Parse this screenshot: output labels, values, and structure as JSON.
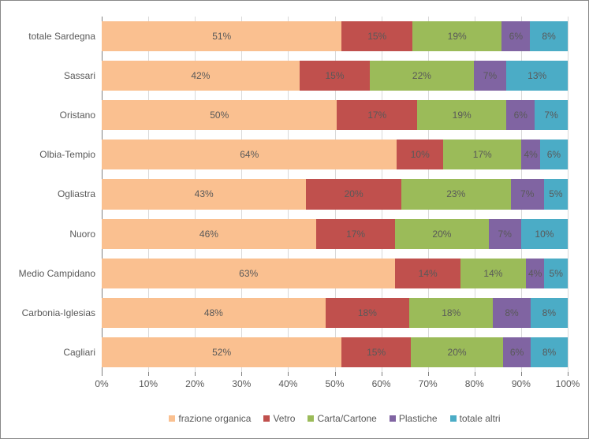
{
  "chart": {
    "type": "bar-stacked-horizontal-100pct",
    "background_color": "#ffffff",
    "border_color": "#888888",
    "font_family": "Arial",
    "label_fontsize": 12,
    "label_color": "#595959",
    "xlim": [
      0,
      100
    ],
    "xtick_step": 10,
    "xtick_labels": [
      "0%",
      "10%",
      "20%",
      "30%",
      "40%",
      "50%",
      "60%",
      "70%",
      "80%",
      "90%",
      "100%"
    ],
    "gridline_color": "#d9d9d9",
    "axis_line_color": "#808080",
    "series": [
      {
        "key": "frazione_organica",
        "label": "frazione organica",
        "color": "#fac090"
      },
      {
        "key": "vetro",
        "label": "Vetro",
        "color": "#c0504d"
      },
      {
        "key": "carta_cartone",
        "label": "Carta/Cartone",
        "color": "#9bbb59"
      },
      {
        "key": "plastiche",
        "label": "Plastiche",
        "color": "#8064a2"
      },
      {
        "key": "totale_altri",
        "label": "totale altri",
        "color": "#4bacc6"
      }
    ],
    "categories": [
      {
        "label": "totale Sardegna",
        "values": {
          "frazione_organica": 51,
          "vetro": 15,
          "carta_cartone": 19,
          "plastiche": 6,
          "totale_altri": 8
        },
        "display": {
          "frazione_organica": "51%",
          "vetro": "15%",
          "carta_cartone": "19%",
          "plastiche": "6%",
          "totale_altri": "8%"
        }
      },
      {
        "label": "Sassari",
        "values": {
          "frazione_organica": 42,
          "vetro": 15,
          "carta_cartone": 22,
          "plastiche": 7,
          "totale_altri": 13
        },
        "display": {
          "frazione_organica": "42%",
          "vetro": "15%",
          "carta_cartone": "22%",
          "plastiche": "7%",
          "totale_altri": "13%"
        }
      },
      {
        "label": "Oristano",
        "values": {
          "frazione_organica": 50,
          "vetro": 17,
          "carta_cartone": 19,
          "plastiche": 6,
          "totale_altri": 7
        },
        "display": {
          "frazione_organica": "50%",
          "vetro": "17%",
          "carta_cartone": "19%",
          "plastiche": "6%",
          "totale_altri": "7%"
        }
      },
      {
        "label": "Olbia-Tempio",
        "values": {
          "frazione_organica": 64,
          "vetro": 10,
          "carta_cartone": 17,
          "plastiche": 4,
          "totale_altri": 6
        },
        "display": {
          "frazione_organica": "64%",
          "vetro": "10%",
          "carta_cartone": "17%",
          "plastiche": "4%",
          "totale_altri": "6%"
        }
      },
      {
        "label": "Ogliastra",
        "values": {
          "frazione_organica": 43,
          "vetro": 20,
          "carta_cartone": 23,
          "plastiche": 7,
          "totale_altri": 5
        },
        "display": {
          "frazione_organica": "43%",
          "vetro": "20%",
          "carta_cartone": "23%",
          "plastiche": "7%",
          "totale_altri": "5%"
        }
      },
      {
        "label": "Nuoro",
        "values": {
          "frazione_organica": 46,
          "vetro": 17,
          "carta_cartone": 20,
          "plastiche": 7,
          "totale_altri": 10
        },
        "display": {
          "frazione_organica": "46%",
          "vetro": "17%",
          "carta_cartone": "20%",
          "plastiche": "7%",
          "totale_altri": "10%"
        }
      },
      {
        "label": "Medio Campidano",
        "values": {
          "frazione_organica": 63,
          "vetro": 14,
          "carta_cartone": 14,
          "plastiche": 4,
          "totale_altri": 5
        },
        "display": {
          "frazione_organica": "63%",
          "vetro": "14%",
          "carta_cartone": "14%",
          "plastiche": "4%",
          "totale_altri": "5%"
        }
      },
      {
        "label": "Carbonia-Iglesias",
        "values": {
          "frazione_organica": 48,
          "vetro": 18,
          "carta_cartone": 18,
          "plastiche": 8,
          "totale_altri": 8
        },
        "display": {
          "frazione_organica": "48%",
          "vetro": "18%",
          "carta_cartone": "18%",
          "plastiche": "8%",
          "totale_altri": "8%"
        }
      },
      {
        "label": "Cagliari",
        "values": {
          "frazione_organica": 52,
          "vetro": 15,
          "carta_cartone": 20,
          "plastiche": 6,
          "totale_altri": 8
        },
        "display": {
          "frazione_organica": "52%",
          "vetro": "15%",
          "carta_cartone": "20%",
          "plastiche": "6%",
          "totale_altri": "8%"
        }
      }
    ]
  }
}
